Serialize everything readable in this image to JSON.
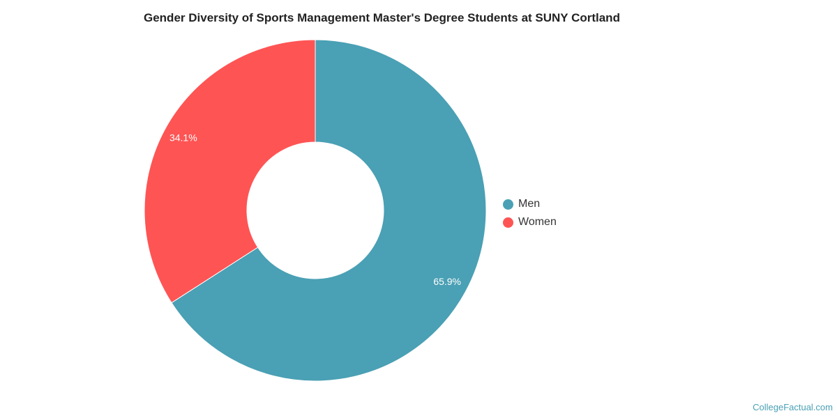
{
  "chart_data": {
    "type": "pie",
    "title": "Gender Diversity of Sports Management Master's Degree Students at SUNY Cortland",
    "categories": [
      "Men",
      "Women"
    ],
    "values": [
      65.9,
      34.1
    ],
    "value_labels": [
      "65.9%",
      "34.1%"
    ],
    "colors": [
      "#4aa0b4",
      "#ff5454"
    ],
    "donut": true,
    "legend_position": "right"
  },
  "credit": "CollegeFactual.com"
}
